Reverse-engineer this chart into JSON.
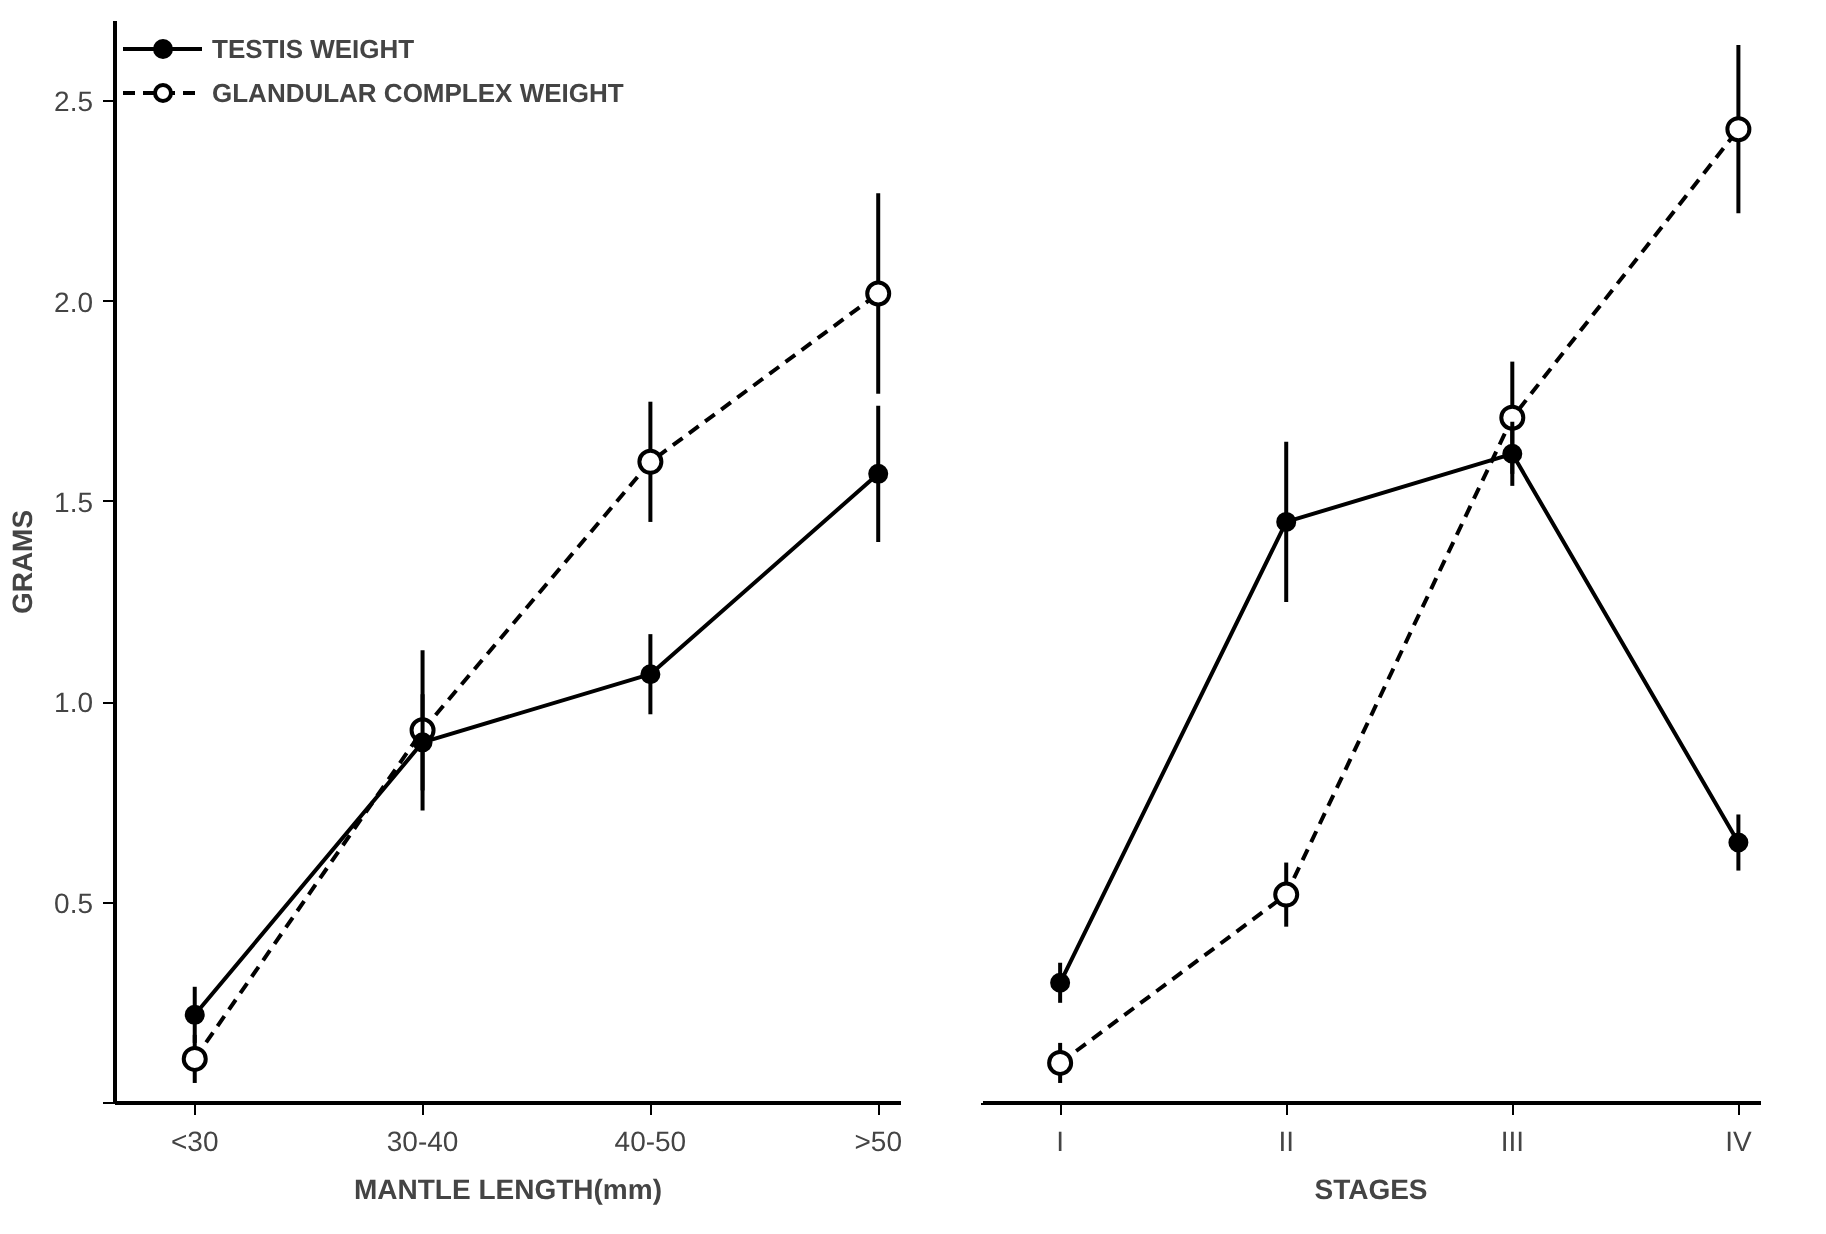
{
  "chart_data": [
    {
      "type": "line",
      "xlabel": "MANTLE LENGTH(mm)",
      "ylabel": "GRAMS",
      "categories": [
        "<30",
        "30-40",
        "40-50",
        ">50"
      ],
      "ylim": [
        0,
        2.7
      ],
      "yticks": [
        {
          "value": 0,
          "label": null
        },
        0.5,
        {
          "value": 1.0,
          "label": "1.0"
        },
        1.5,
        {
          "value": 2.0,
          "label": "2.0"
        },
        2.5
      ],
      "legend": "top left",
      "grid": false,
      "series": [
        {
          "name": "TESTIS WEIGHT",
          "color": "#000000",
          "marker": "circle",
          "line_style": "solid",
          "values": [
            0.22,
            0.9,
            1.07,
            1.57
          ],
          "errors": [
            0.07,
            0.12,
            0.1,
            0.17
          ]
        },
        {
          "name": "GLANDULAR COMPLEX WEIGHT",
          "color": "#000000",
          "marker": "circle",
          "line_style": "dashed",
          "values": [
            0.11,
            0.93,
            1.6,
            2.02
          ],
          "errors": [
            0.06,
            0.2,
            0.15,
            0.25
          ]
        }
      ]
    },
    {
      "type": "line",
      "xlabel": "STAGES",
      "categories": [
        "I",
        "II",
        "III",
        "IV"
      ],
      "ylim": [
        0,
        2.7
      ],
      "tick_labels": "x",
      "grid": false,
      "series": [
        {
          "color": "#000000",
          "marker": "circle",
          "line_style": "solid",
          "values": [
            0.3,
            1.45,
            1.62,
            0.65
          ],
          "errors": [
            0.05,
            0.2,
            0.08,
            0.07
          ]
        },
        {
          "color": "#000000",
          "marker": "circle",
          "line_style": "dashed",
          "values": [
            0.1,
            0.52,
            1.71,
            2.43
          ],
          "errors": [
            0.05,
            0.08,
            0.14,
            0.21
          ]
        }
      ]
    }
  ]
}
